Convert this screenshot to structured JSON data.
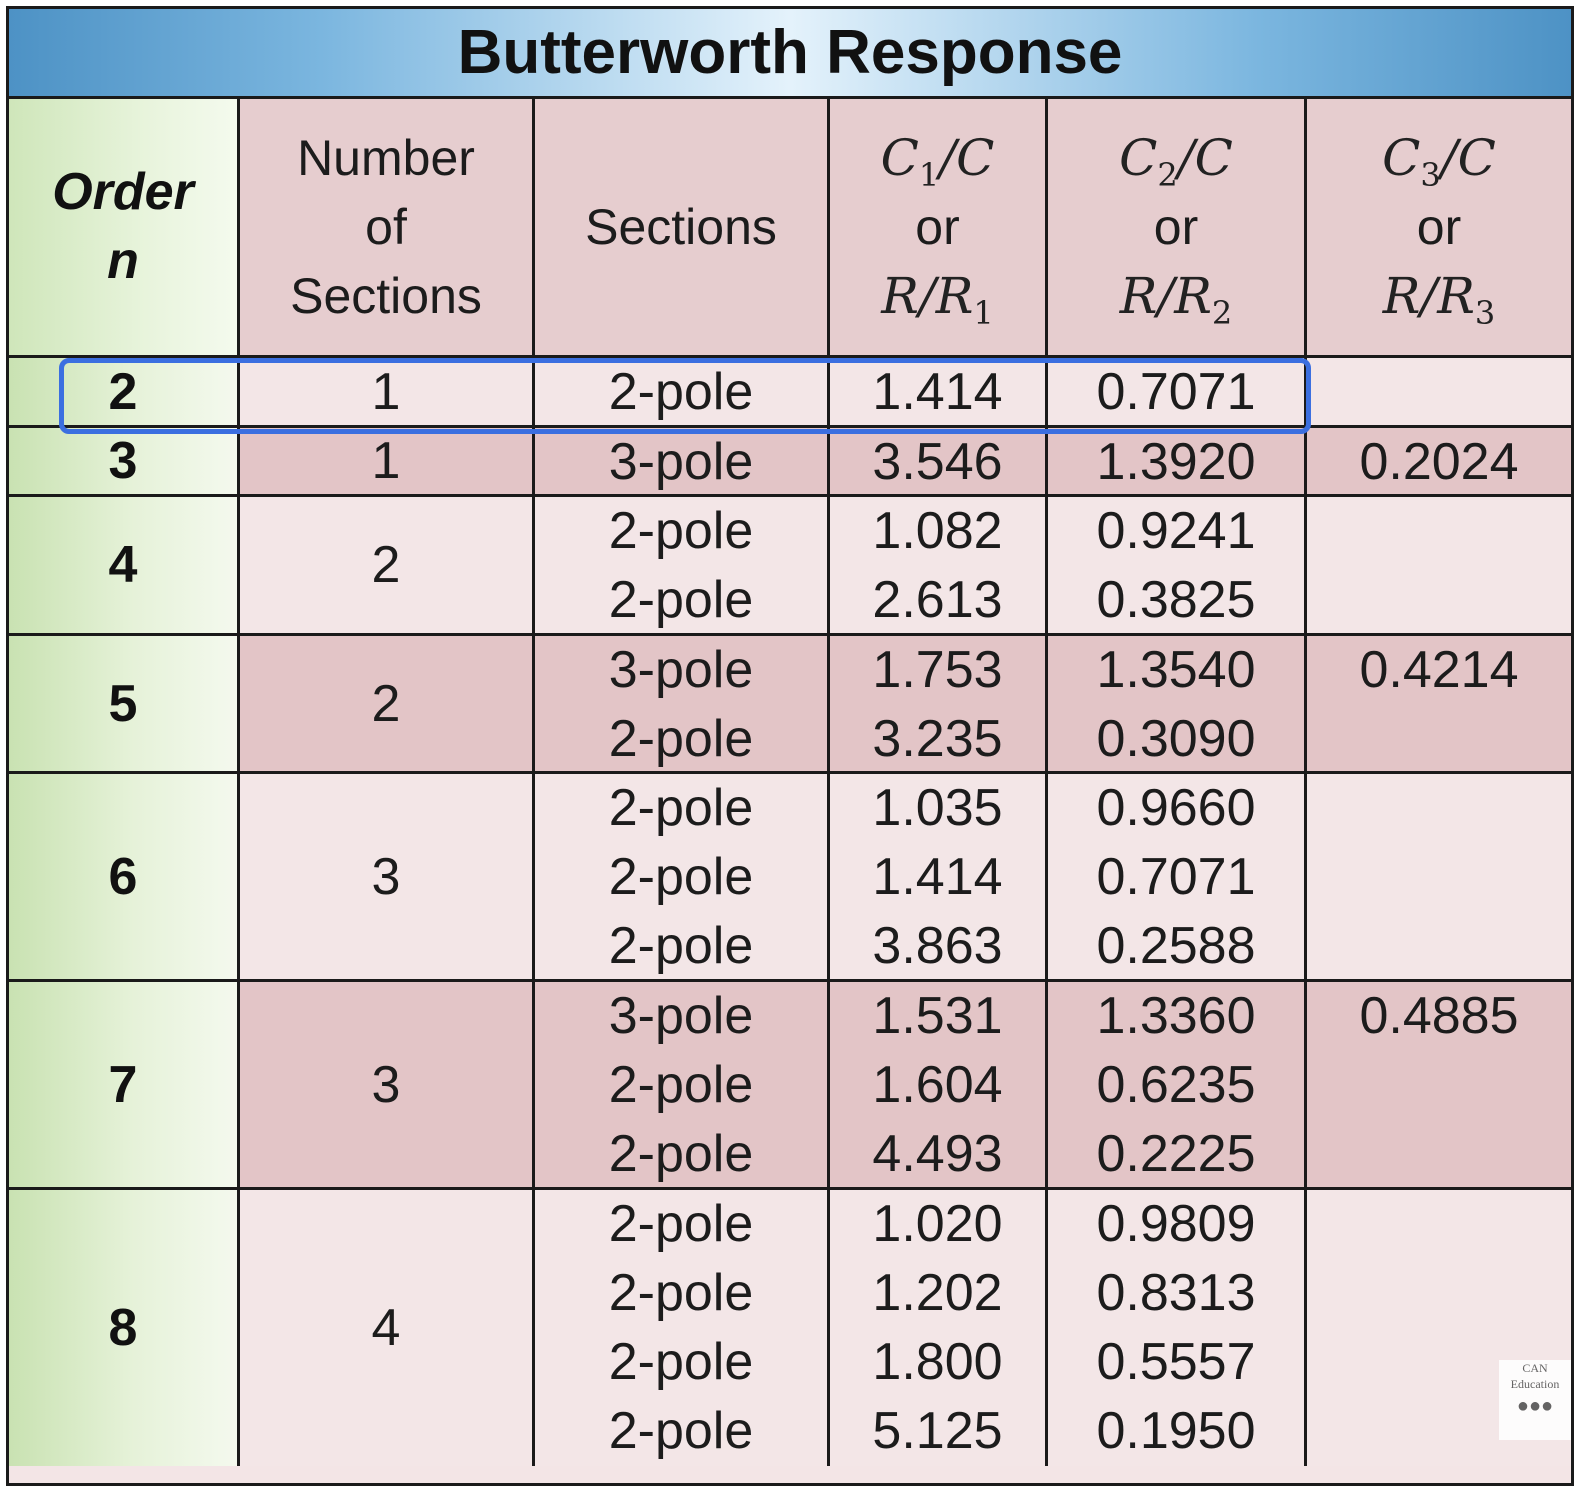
{
  "title": "Butterworth Response",
  "headers": {
    "order": [
      "Order",
      "n"
    ],
    "num_sections": [
      "Number",
      "of",
      "Sections"
    ],
    "sections": "Sections",
    "c1": {
      "num": "C",
      "sub": "1",
      "den": "C",
      "or": "or",
      "r": "R",
      "r_sub": "1"
    },
    "c2": {
      "num": "C",
      "sub": "2",
      "den": "C",
      "or": "or",
      "r": "R",
      "r_sub": "2"
    },
    "c3": {
      "num": "C",
      "sub": "3",
      "den": "C",
      "or": "or",
      "r": "R",
      "r_sub": "3"
    }
  },
  "rows": [
    {
      "order": "2",
      "num": "1",
      "sections": [
        "2-pole"
      ],
      "c1": [
        "1.414"
      ],
      "c2": [
        "0.7071"
      ],
      "c3": [
        ""
      ]
    },
    {
      "order": "3",
      "num": "1",
      "sections": [
        "3-pole"
      ],
      "c1": [
        "3.546"
      ],
      "c2": [
        "1.3920"
      ],
      "c3": [
        "0.2024"
      ]
    },
    {
      "order": "4",
      "num": "2",
      "sections": [
        "2-pole",
        "2-pole"
      ],
      "c1": [
        "1.082",
        "2.613"
      ],
      "c2": [
        "0.9241",
        "0.3825"
      ],
      "c3": [
        "",
        ""
      ]
    },
    {
      "order": "5",
      "num": "2",
      "sections": [
        "3-pole",
        "2-pole"
      ],
      "c1": [
        "1.753",
        "3.235"
      ],
      "c2": [
        "1.3540",
        "0.3090"
      ],
      "c3": [
        "0.4214",
        ""
      ]
    },
    {
      "order": "6",
      "num": "3",
      "sections": [
        "2-pole",
        "2-pole",
        "2-pole"
      ],
      "c1": [
        "1.035",
        "1.414",
        "3.863"
      ],
      "c2": [
        "0.9660",
        "0.7071",
        "0.2588"
      ],
      "c3": [
        "",
        "",
        ""
      ]
    },
    {
      "order": "7",
      "num": "3",
      "sections": [
        "3-pole",
        "2-pole",
        "2-pole"
      ],
      "c1": [
        "1.531",
        "1.604",
        "4.493"
      ],
      "c2": [
        "1.3360",
        "0.6235",
        "0.2225"
      ],
      "c3": [
        "0.4885",
        "",
        ""
      ]
    },
    {
      "order": "8",
      "num": "4",
      "sections": [
        "2-pole",
        "2-pole",
        "2-pole",
        "2-pole"
      ],
      "c1": [
        "1.020",
        "1.202",
        "1.800",
        "5.125"
      ],
      "c2": [
        "0.9809",
        "0.8313",
        "0.5557",
        "0.1950"
      ],
      "c3": [
        "",
        "",
        "",
        ""
      ]
    }
  ],
  "logo": {
    "line1": "CAN",
    "line2": "Education"
  }
}
